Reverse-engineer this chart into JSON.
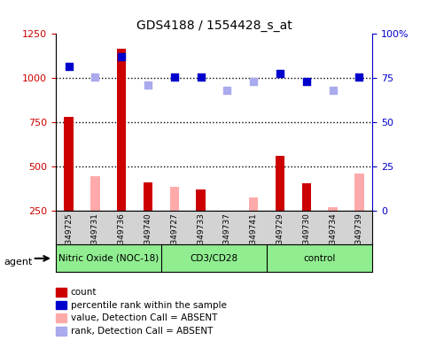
{
  "title": "GDS4188 / 1554428_s_at",
  "samples": [
    "GSM349725",
    "GSM349731",
    "GSM349736",
    "GSM349740",
    "GSM349727",
    "GSM349733",
    "GSM349737",
    "GSM349741",
    "GSM349729",
    "GSM349730",
    "GSM349734",
    "GSM349739"
  ],
  "groups": [
    {
      "name": "Nitric Oxide (NOC-18)",
      "count": 4,
      "color": "#90ee90"
    },
    {
      "name": "CD3/CD28",
      "count": 4,
      "color": "#90ee90"
    },
    {
      "name": "control",
      "count": 4,
      "color": "#90ee90"
    }
  ],
  "count_values": [
    780,
    null,
    1165,
    410,
    null,
    370,
    null,
    null,
    560,
    405,
    null,
    null
  ],
  "count_absent": [
    null,
    445,
    null,
    null,
    385,
    null,
    240,
    325,
    null,
    null,
    270,
    460
  ],
  "percentile_present": [
    1065,
    null,
    1120,
    null,
    1005,
    1005,
    null,
    null,
    1025,
    980,
    null,
    1005
  ],
  "percentile_absent": [
    null,
    1005,
    null,
    960,
    null,
    null,
    930,
    980,
    null,
    null,
    930,
    null
  ],
  "ylim_left": [
    250,
    1250
  ],
  "ylim_right": [
    0,
    100
  ],
  "yticks_left": [
    250,
    500,
    750,
    1000,
    1250
  ],
  "yticks_right": [
    0,
    25,
    50,
    75,
    100
  ],
  "ytick_labels_right": [
    "0",
    "25",
    "50",
    "75",
    "100%"
  ],
  "hlines": [
    500,
    750,
    1000
  ],
  "bar_width": 0.35,
  "colors": {
    "count_present": "#cc0000",
    "count_absent": "#ffaaaa",
    "percentile_present": "#0000cc",
    "percentile_absent": "#aaaaee",
    "axis_left": "#cc0000",
    "axis_right": "#0000cc",
    "grid": "#000000",
    "plot_bg": "#ffffff",
    "label_box": "#d3d3d3",
    "group_box": "#90ee90"
  },
  "legend_items": [
    {
      "label": "count",
      "color": "#cc0000",
      "marker": "s"
    },
    {
      "label": "percentile rank within the sample",
      "color": "#0000cc",
      "marker": "s"
    },
    {
      "label": "value, Detection Call = ABSENT",
      "color": "#ffaaaa",
      "marker": "s"
    },
    {
      "label": "rank, Detection Call = ABSENT",
      "color": "#aaaaee",
      "marker": "s"
    }
  ],
  "agent_label": "agent",
  "figsize": [
    4.83,
    3.84
  ],
  "dpi": 100
}
